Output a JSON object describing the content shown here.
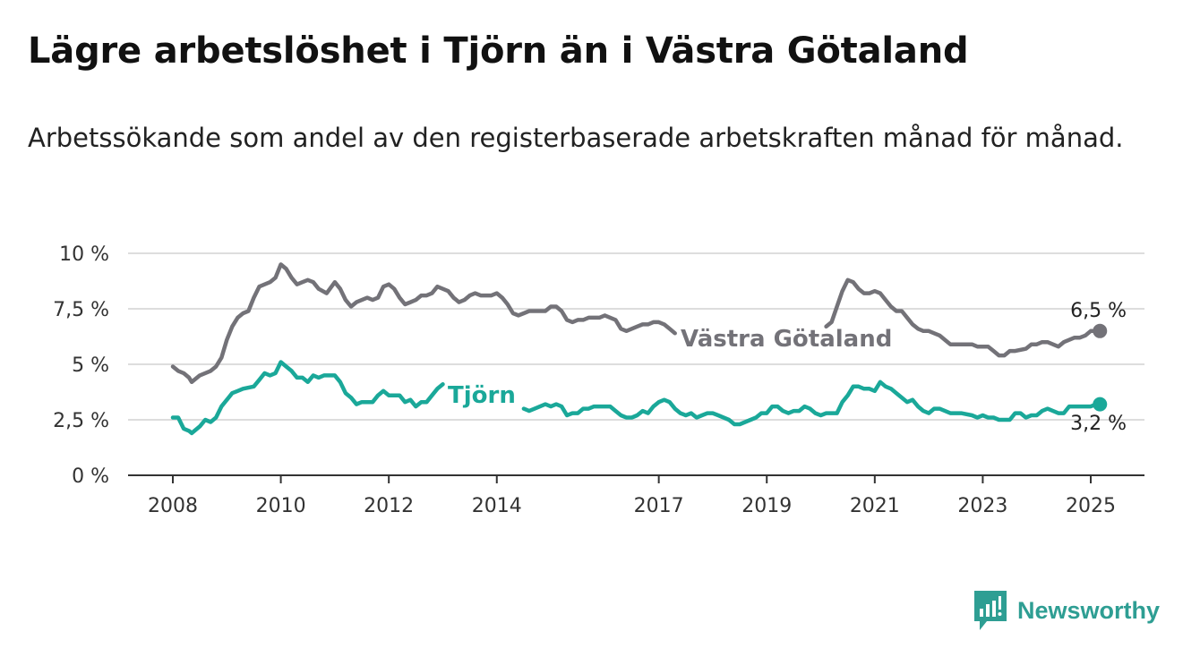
{
  "title": "Lägre arbetslöshet i Tjörn än i Västra Götaland",
  "subtitle": "Arbetssökande som andel av den registerbaserade arbetskraften månad för månad.",
  "brand": "Newsworthy",
  "colors": {
    "vg": "#737278",
    "tjorn": "#1aa899",
    "grid": "#dddddd",
    "axis": "#333333",
    "brand": "#2e9e93"
  },
  "chart_data": {
    "type": "line",
    "title": "Lägre arbetslöshet i Tjörn än i Västra Götaland",
    "subtitle": "Arbetssökande som andel av den registerbaserade arbetskraften månad för månad.",
    "x_unit": "year",
    "xlim": [
      2007.2,
      2026.0
    ],
    "ylim": [
      0,
      10
    ],
    "y_ticks": [
      0,
      2.5,
      5,
      7.5,
      10
    ],
    "y_tick_labels": [
      "0 %",
      "2,5 %",
      "5 %",
      "7,5 %",
      "10 %"
    ],
    "x_ticks": [
      2008,
      2010,
      2012,
      2014,
      2017,
      2019,
      2021,
      2023,
      2025
    ],
    "x_tick_labels": [
      "2008",
      "2010",
      "2012",
      "2014",
      "2017",
      "2019",
      "2021",
      "2023",
      "2025"
    ],
    "grid": true,
    "series": [
      {
        "name": "Västra Götaland",
        "end_label": "6,5 %",
        "points": [
          [
            2008.0,
            4.9
          ],
          [
            2008.1,
            4.7
          ],
          [
            2008.2,
            4.6
          ],
          [
            2008.3,
            4.4
          ],
          [
            2008.35,
            4.2
          ],
          [
            2008.5,
            4.5
          ],
          [
            2008.7,
            4.7
          ],
          [
            2008.8,
            4.9
          ],
          [
            2008.9,
            5.3
          ],
          [
            2009.0,
            6.1
          ],
          [
            2009.1,
            6.7
          ],
          [
            2009.2,
            7.1
          ],
          [
            2009.3,
            7.3
          ],
          [
            2009.4,
            7.4
          ],
          [
            2009.5,
            8.0
          ],
          [
            2009.6,
            8.5
          ],
          [
            2009.8,
            8.7
          ],
          [
            2009.9,
            8.9
          ],
          [
            2010.0,
            9.5
          ],
          [
            2010.1,
            9.3
          ],
          [
            2010.2,
            8.9
          ],
          [
            2010.3,
            8.6
          ],
          [
            2010.4,
            8.7
          ],
          [
            2010.5,
            8.8
          ],
          [
            2010.6,
            8.7
          ],
          [
            2010.7,
            8.4
          ],
          [
            2010.85,
            8.2
          ],
          [
            2011.0,
            8.7
          ],
          [
            2011.1,
            8.4
          ],
          [
            2011.2,
            7.9
          ],
          [
            2011.3,
            7.6
          ],
          [
            2011.4,
            7.8
          ],
          [
            2011.6,
            8.0
          ],
          [
            2011.7,
            7.9
          ],
          [
            2011.8,
            8.0
          ],
          [
            2011.9,
            8.5
          ],
          [
            2012.0,
            8.6
          ],
          [
            2012.1,
            8.4
          ],
          [
            2012.2,
            8.0
          ],
          [
            2012.3,
            7.7
          ],
          [
            2012.4,
            7.8
          ],
          [
            2012.5,
            7.9
          ],
          [
            2012.6,
            8.1
          ],
          [
            2012.7,
            8.1
          ],
          [
            2012.8,
            8.2
          ],
          [
            2012.9,
            8.5
          ],
          [
            2013.0,
            8.4
          ],
          [
            2013.1,
            8.3
          ],
          [
            2013.2,
            8.0
          ],
          [
            2013.3,
            7.8
          ],
          [
            2013.4,
            7.9
          ],
          [
            2013.5,
            8.1
          ],
          [
            2013.6,
            8.2
          ],
          [
            2013.7,
            8.1
          ],
          [
            2013.8,
            8.1
          ],
          [
            2013.9,
            8.1
          ],
          [
            2014.0,
            8.2
          ],
          [
            2014.1,
            8.0
          ],
          [
            2014.2,
            7.7
          ],
          [
            2014.3,
            7.3
          ],
          [
            2014.4,
            7.2
          ],
          [
            2014.5,
            7.3
          ],
          [
            2014.6,
            7.4
          ],
          [
            2014.9,
            7.4
          ],
          [
            2015.0,
            7.6
          ],
          [
            2015.1,
            7.6
          ],
          [
            2015.2,
            7.4
          ],
          [
            2015.3,
            7.0
          ],
          [
            2015.4,
            6.9
          ],
          [
            2015.5,
            7.0
          ],
          [
            2015.6,
            7.0
          ],
          [
            2015.7,
            7.1
          ],
          [
            2015.9,
            7.1
          ],
          [
            2016.0,
            7.2
          ],
          [
            2016.1,
            7.1
          ],
          [
            2016.2,
            7.0
          ],
          [
            2016.3,
            6.6
          ],
          [
            2016.4,
            6.5
          ],
          [
            2016.5,
            6.6
          ],
          [
            2016.6,
            6.7
          ],
          [
            2016.7,
            6.8
          ],
          [
            2016.8,
            6.8
          ],
          [
            2016.9,
            6.9
          ],
          [
            2017.0,
            6.9
          ],
          [
            2017.1,
            6.8
          ],
          [
            2017.2,
            6.6
          ],
          [
            2017.3,
            6.4
          ]
        ],
        "points_2": [
          [
            2020.1,
            6.7
          ],
          [
            2020.2,
            6.9
          ],
          [
            2020.3,
            7.6
          ],
          [
            2020.4,
            8.3
          ],
          [
            2020.5,
            8.8
          ],
          [
            2020.6,
            8.7
          ],
          [
            2020.7,
            8.4
          ],
          [
            2020.8,
            8.2
          ],
          [
            2020.9,
            8.2
          ],
          [
            2021.0,
            8.3
          ],
          [
            2021.1,
            8.2
          ],
          [
            2021.2,
            7.9
          ],
          [
            2021.3,
            7.6
          ],
          [
            2021.4,
            7.4
          ],
          [
            2021.5,
            7.4
          ],
          [
            2021.6,
            7.1
          ],
          [
            2021.7,
            6.8
          ],
          [
            2021.8,
            6.6
          ],
          [
            2021.9,
            6.5
          ],
          [
            2022.0,
            6.5
          ],
          [
            2022.1,
            6.4
          ],
          [
            2022.2,
            6.3
          ],
          [
            2022.3,
            6.1
          ],
          [
            2022.4,
            5.9
          ],
          [
            2022.5,
            5.9
          ],
          [
            2022.6,
            5.9
          ],
          [
            2022.8,
            5.9
          ],
          [
            2022.9,
            5.8
          ],
          [
            2023.0,
            5.8
          ],
          [
            2023.1,
            5.8
          ],
          [
            2023.2,
            5.6
          ],
          [
            2023.3,
            5.4
          ],
          [
            2023.4,
            5.4
          ],
          [
            2023.5,
            5.6
          ],
          [
            2023.6,
            5.6
          ],
          [
            2023.8,
            5.7
          ],
          [
            2023.9,
            5.9
          ],
          [
            2024.0,
            5.9
          ],
          [
            2024.1,
            6.0
          ],
          [
            2024.2,
            6.0
          ],
          [
            2024.3,
            5.9
          ],
          [
            2024.4,
            5.8
          ],
          [
            2024.5,
            6.0
          ],
          [
            2024.6,
            6.1
          ],
          [
            2024.7,
            6.2
          ],
          [
            2024.8,
            6.2
          ],
          [
            2024.9,
            6.3
          ],
          [
            2025.0,
            6.5
          ],
          [
            2025.1,
            6.5
          ],
          [
            2025.17,
            6.5
          ]
        ]
      },
      {
        "name": "Tjörn",
        "end_label": "3,2 %",
        "points": [
          [
            2008.0,
            2.6
          ],
          [
            2008.1,
            2.6
          ],
          [
            2008.2,
            2.1
          ],
          [
            2008.3,
            2.0
          ],
          [
            2008.35,
            1.9
          ],
          [
            2008.5,
            2.2
          ],
          [
            2008.6,
            2.5
          ],
          [
            2008.7,
            2.4
          ],
          [
            2008.8,
            2.6
          ],
          [
            2008.9,
            3.1
          ],
          [
            2009.0,
            3.4
          ],
          [
            2009.1,
            3.7
          ],
          [
            2009.2,
            3.8
          ],
          [
            2009.3,
            3.9
          ],
          [
            2009.5,
            4.0
          ],
          [
            2009.6,
            4.3
          ],
          [
            2009.7,
            4.6
          ],
          [
            2009.8,
            4.5
          ],
          [
            2009.9,
            4.6
          ],
          [
            2010.0,
            5.1
          ],
          [
            2010.1,
            4.9
          ],
          [
            2010.2,
            4.7
          ],
          [
            2010.3,
            4.4
          ],
          [
            2010.4,
            4.4
          ],
          [
            2010.5,
            4.2
          ],
          [
            2010.6,
            4.5
          ],
          [
            2010.7,
            4.4
          ],
          [
            2010.8,
            4.5
          ],
          [
            2011.0,
            4.5
          ],
          [
            2011.1,
            4.2
          ],
          [
            2011.2,
            3.7
          ],
          [
            2011.3,
            3.5
          ],
          [
            2011.4,
            3.2
          ],
          [
            2011.5,
            3.3
          ],
          [
            2011.7,
            3.3
          ],
          [
            2011.8,
            3.6
          ],
          [
            2011.9,
            3.8
          ],
          [
            2012.0,
            3.6
          ],
          [
            2012.2,
            3.6
          ],
          [
            2012.3,
            3.3
          ],
          [
            2012.4,
            3.4
          ],
          [
            2012.5,
            3.1
          ],
          [
            2012.6,
            3.3
          ],
          [
            2012.7,
            3.3
          ],
          [
            2012.8,
            3.6
          ],
          [
            2012.9,
            3.9
          ],
          [
            2013.0,
            4.1
          ]
        ],
        "points_2": [
          [
            2014.5,
            3.0
          ],
          [
            2014.6,
            2.9
          ],
          [
            2014.7,
            3.0
          ],
          [
            2014.8,
            3.1
          ],
          [
            2014.9,
            3.2
          ],
          [
            2015.0,
            3.1
          ],
          [
            2015.1,
            3.2
          ],
          [
            2015.2,
            3.1
          ],
          [
            2015.3,
            2.7
          ],
          [
            2015.4,
            2.8
          ],
          [
            2015.5,
            2.8
          ],
          [
            2015.6,
            3.0
          ],
          [
            2015.7,
            3.0
          ],
          [
            2015.8,
            3.1
          ],
          [
            2016.0,
            3.1
          ],
          [
            2016.1,
            3.1
          ],
          [
            2016.2,
            2.9
          ],
          [
            2016.3,
            2.7
          ],
          [
            2016.4,
            2.6
          ],
          [
            2016.5,
            2.6
          ],
          [
            2016.6,
            2.7
          ],
          [
            2016.7,
            2.9
          ],
          [
            2016.8,
            2.8
          ],
          [
            2016.9,
            3.1
          ],
          [
            2017.0,
            3.3
          ],
          [
            2017.1,
            3.4
          ],
          [
            2017.2,
            3.3
          ],
          [
            2017.3,
            3.0
          ],
          [
            2017.4,
            2.8
          ],
          [
            2017.5,
            2.7
          ],
          [
            2017.6,
            2.8
          ],
          [
            2017.7,
            2.6
          ],
          [
            2017.8,
            2.7
          ],
          [
            2017.9,
            2.8
          ],
          [
            2018.0,
            2.8
          ],
          [
            2018.1,
            2.7
          ],
          [
            2018.2,
            2.6
          ],
          [
            2018.3,
            2.5
          ],
          [
            2018.4,
            2.3
          ],
          [
            2018.5,
            2.3
          ],
          [
            2018.6,
            2.4
          ],
          [
            2018.8,
            2.6
          ],
          [
            2018.9,
            2.8
          ],
          [
            2019.0,
            2.8
          ],
          [
            2019.1,
            3.1
          ],
          [
            2019.2,
            3.1
          ],
          [
            2019.3,
            2.9
          ],
          [
            2019.4,
            2.8
          ],
          [
            2019.5,
            2.9
          ],
          [
            2019.6,
            2.9
          ],
          [
            2019.7,
            3.1
          ],
          [
            2019.8,
            3.0
          ],
          [
            2019.9,
            2.8
          ],
          [
            2020.0,
            2.7
          ],
          [
            2020.1,
            2.8
          ],
          [
            2020.2,
            2.8
          ],
          [
            2020.3,
            2.8
          ],
          [
            2020.4,
            3.3
          ],
          [
            2020.5,
            3.6
          ],
          [
            2020.6,
            4.0
          ],
          [
            2020.7,
            4.0
          ],
          [
            2020.8,
            3.9
          ],
          [
            2020.9,
            3.9
          ],
          [
            2021.0,
            3.8
          ],
          [
            2021.1,
            4.2
          ],
          [
            2021.2,
            4.0
          ],
          [
            2021.3,
            3.9
          ],
          [
            2021.4,
            3.7
          ],
          [
            2021.5,
            3.5
          ],
          [
            2021.6,
            3.3
          ],
          [
            2021.7,
            3.4
          ],
          [
            2021.8,
            3.1
          ],
          [
            2021.9,
            2.9
          ],
          [
            2022.0,
            2.8
          ],
          [
            2022.1,
            3.0
          ],
          [
            2022.2,
            3.0
          ],
          [
            2022.3,
            2.9
          ],
          [
            2022.4,
            2.8
          ],
          [
            2022.6,
            2.8
          ],
          [
            2022.8,
            2.7
          ],
          [
            2022.9,
            2.6
          ],
          [
            2023.0,
            2.7
          ],
          [
            2023.1,
            2.6
          ],
          [
            2023.2,
            2.6
          ],
          [
            2023.3,
            2.5
          ],
          [
            2023.4,
            2.5
          ],
          [
            2023.5,
            2.5
          ],
          [
            2023.6,
            2.8
          ],
          [
            2023.7,
            2.8
          ],
          [
            2023.8,
            2.6
          ],
          [
            2023.9,
            2.7
          ],
          [
            2024.0,
            2.7
          ],
          [
            2024.1,
            2.9
          ],
          [
            2024.2,
            3.0
          ],
          [
            2024.3,
            2.9
          ],
          [
            2024.4,
            2.8
          ],
          [
            2024.5,
            2.8
          ],
          [
            2024.6,
            3.1
          ],
          [
            2024.8,
            3.1
          ],
          [
            2025.0,
            3.1
          ],
          [
            2025.1,
            3.2
          ],
          [
            2025.17,
            3.2
          ]
        ]
      }
    ]
  }
}
